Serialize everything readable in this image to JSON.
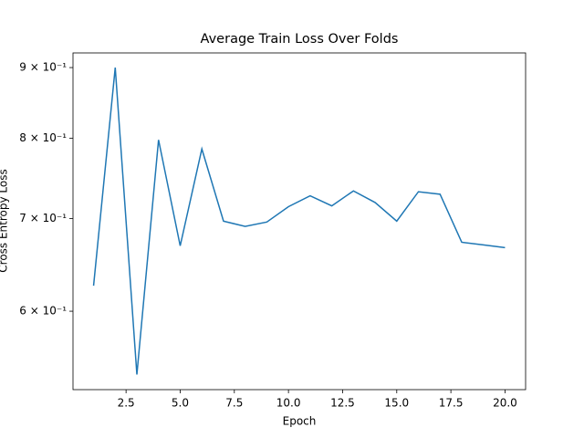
{
  "chart_data": {
    "type": "line",
    "title": "Average Train Loss Over Folds",
    "x_label": "Epoch",
    "y_label": "Cross Entropy Loss",
    "x": [
      1,
      2,
      3,
      4,
      5,
      6,
      7,
      8,
      9,
      10,
      11,
      12,
      13,
      14,
      15,
      16,
      17,
      18,
      19,
      20
    ],
    "series": [
      {
        "name": "Average Train Loss",
        "color": "#1f77b4",
        "values": [
          0.626,
          0.9,
          0.54,
          0.798,
          0.669,
          0.786,
          0.697,
          0.691,
          0.696,
          0.714,
          0.727,
          0.715,
          0.733,
          0.719,
          0.697,
          0.732,
          0.729,
          0.673,
          0.67,
          0.667
        ]
      }
    ],
    "xlim": [
      0.05,
      20.95
    ],
    "xticks": [
      {
        "value": 2.5,
        "label": "2.5"
      },
      {
        "value": 5,
        "label": "5.0"
      },
      {
        "value": 7.5,
        "label": "7.5"
      },
      {
        "value": 10,
        "label": "10.0"
      },
      {
        "value": 12.5,
        "label": "12.5"
      },
      {
        "value": 15,
        "label": "15.0"
      },
      {
        "value": 17.5,
        "label": "17.5"
      },
      {
        "value": 20,
        "label": "20.0"
      }
    ],
    "ylim": [
      0.5266,
      0.9222
    ],
    "y_scale": "log",
    "yticks": [
      {
        "value": 0.6,
        "label": "6 × 10⁻¹"
      },
      {
        "value": 0.7,
        "label": "7 × 10⁻¹"
      },
      {
        "value": 0.8,
        "label": "8 × 10⁻¹"
      },
      {
        "value": 0.9,
        "label": "9 × 10⁻¹"
      }
    ],
    "grid": false
  }
}
